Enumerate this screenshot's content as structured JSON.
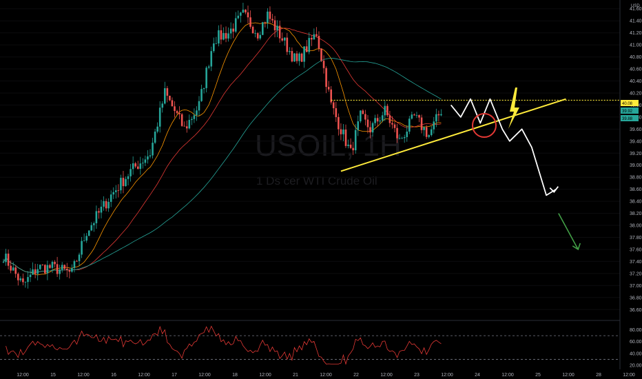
{
  "price_axis": {
    "currency": "USD",
    "labels": [
      "41.60",
      "41.40",
      "41.20",
      "41.00",
      "40.80",
      "40.60",
      "40.40",
      "40.20",
      "40.00",
      "39.80",
      "39.60",
      "39.40",
      "39.20",
      "39.00",
      "38.80",
      "38.60",
      "38.40",
      "38.20",
      "38.00",
      "37.80",
      "37.60",
      "37.40",
      "37.20",
      "37.00",
      "36.80",
      "36.60"
    ]
  },
  "price_tags": [
    {
      "text": "40.08",
      "bg": "#ffeb3b"
    },
    {
      "text": "39.92",
      "bg": "#26a69a"
    },
    {
      "text": "39.88",
      "bg": "#26a69a"
    }
  ],
  "time_axis": {
    "labels": [
      "12:00",
      "15",
      "12:00",
      "16",
      "12:00",
      "17",
      "12:00",
      "18",
      "12:00",
      "21",
      "12:00",
      "22",
      "12:00",
      "23",
      "12:00",
      "24",
      "12:00",
      "25",
      "12:00",
      "28",
      "12:00"
    ]
  },
  "rsi_axis": {
    "labels": [
      "80.00",
      "60.00",
      "40.00",
      "20.00"
    ]
  },
  "watermark": {
    "symbol": "USOIL, 1H",
    "description": "1 Ds cer WTI Crude Oil"
  },
  "colors": {
    "background": "#000000",
    "up_candle": "#26a69a",
    "down_candle": "#ef5350",
    "ma_fast": "#ff9800",
    "ma_mid": "#e53935",
    "ma_slow": "#26a69a",
    "rsi_line": "#e53935",
    "trendline": "#ffeb3b",
    "resistance": "#ffeb3b",
    "projection": "#ffffff",
    "circle": "#e53935",
    "target_arrow": "#43a047",
    "lightning": "#ffeb3b"
  },
  "chart_data": {
    "type": "candlestick",
    "symbol": "USOIL",
    "interval": "1H",
    "y_range": [
      36.5,
      41.7
    ],
    "candles_count": 180,
    "anchors_time_price": [
      [
        0,
        37.5
      ],
      [
        8,
        37.0
      ],
      [
        14,
        37.3
      ],
      [
        20,
        37.3
      ],
      [
        28,
        37.2
      ],
      [
        34,
        37.9
      ],
      [
        44,
        38.5
      ],
      [
        52,
        38.9
      ],
      [
        60,
        39.2
      ],
      [
        66,
        40.2
      ],
      [
        74,
        39.6
      ],
      [
        80,
        40.0
      ],
      [
        86,
        41.1
      ],
      [
        92,
        41.2
      ],
      [
        98,
        41.5
      ],
      [
        104,
        41.2
      ],
      [
        108,
        41.5
      ],
      [
        114,
        41.1
      ],
      [
        120,
        40.7
      ],
      [
        128,
        41.2
      ],
      [
        134,
        40.0
      ],
      [
        142,
        39.2
      ],
      [
        146,
        39.8
      ],
      [
        150,
        39.6
      ],
      [
        156,
        39.9
      ],
      [
        162,
        39.4
      ],
      [
        168,
        39.8
      ],
      [
        174,
        39.5
      ],
      [
        180,
        40.0
      ]
    ],
    "resistance_level": 40.08,
    "trendline": {
      "from": [
        138,
        38.9
      ],
      "to": [
        230,
        40.1
      ]
    },
    "projection_path": [
      [
        183,
        40.0
      ],
      [
        187,
        39.8
      ],
      [
        191,
        40.1
      ],
      [
        195,
        39.7
      ],
      [
        199,
        40.1
      ],
      [
        204,
        39.6
      ],
      [
        207,
        39.4
      ],
      [
        212,
        39.6
      ],
      [
        216,
        39.3
      ],
      [
        222,
        38.5
      ],
      [
        226,
        38.6
      ]
    ],
    "target_arrow": {
      "from": [
        227,
        38.2
      ],
      "to": [
        235,
        37.6
      ]
    },
    "rsi": {
      "y_range": [
        20,
        90
      ],
      "overbought": 70,
      "oversold": 30
    }
  }
}
